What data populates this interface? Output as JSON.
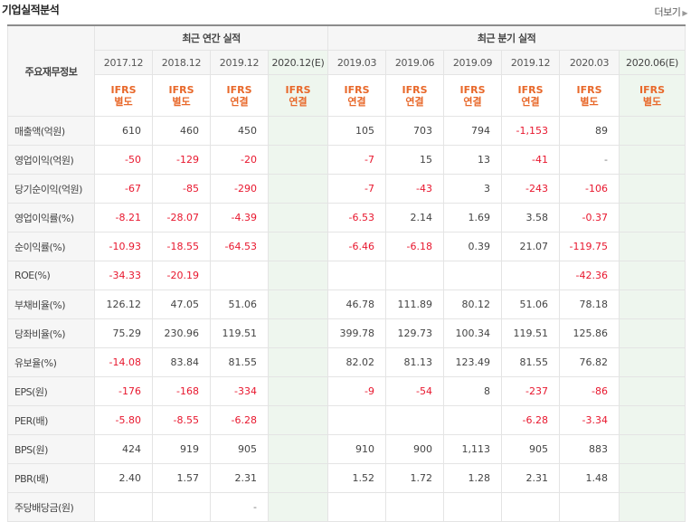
{
  "section_title": "기업실적분석",
  "more_link": "더보기",
  "header": {
    "row_label": "주요재무정보",
    "annual_group": "최근 연간 실적",
    "quarter_group": "최근 분기 실적",
    "periods": [
      "2017.12",
      "2018.12",
      "2019.12",
      "2020.12(E)",
      "2019.03",
      "2019.06",
      "2019.09",
      "2019.12",
      "2020.03",
      "2020.06(E)"
    ],
    "gaap": [
      [
        "IFRS",
        "별도"
      ],
      [
        "IFRS",
        "별도"
      ],
      [
        "IFRS",
        "연결"
      ],
      [
        "IFRS",
        "연결"
      ],
      [
        "IFRS",
        "연결"
      ],
      [
        "IFRS",
        "연결"
      ],
      [
        "IFRS",
        "연결"
      ],
      [
        "IFRS",
        "연결"
      ],
      [
        "IFRS",
        "별도"
      ],
      [
        "IFRS",
        "별도"
      ]
    ]
  },
  "rows": [
    {
      "label": "매출액(억원)",
      "values": [
        "610",
        "460",
        "450",
        "",
        "105",
        "703",
        "794",
        "-1,153",
        "89",
        ""
      ]
    },
    {
      "label": "영업이익(억원)",
      "values": [
        "-50",
        "-129",
        "-20",
        "",
        "-7",
        "15",
        "13",
        "-41",
        "-",
        ""
      ]
    },
    {
      "label": "당기순이익(억원)",
      "values": [
        "-67",
        "-85",
        "-290",
        "",
        "-7",
        "-43",
        "3",
        "-243",
        "-106",
        ""
      ]
    },
    {
      "label": "영업이익률(%)",
      "values": [
        "-8.21",
        "-28.07",
        "-4.39",
        "",
        "-6.53",
        "2.14",
        "1.69",
        "3.58",
        "-0.37",
        ""
      ]
    },
    {
      "label": "순이익률(%)",
      "values": [
        "-10.93",
        "-18.55",
        "-64.53",
        "",
        "-6.46",
        "-6.18",
        "0.39",
        "21.07",
        "-119.75",
        ""
      ]
    },
    {
      "label": "ROE(%)",
      "values": [
        "-34.33",
        "-20.19",
        "",
        "",
        "",
        "",
        "",
        "",
        "-42.36",
        ""
      ]
    },
    {
      "label": "부채비율(%)",
      "values": [
        "126.12",
        "47.05",
        "51.06",
        "",
        "46.78",
        "111.89",
        "80.12",
        "51.06",
        "78.18",
        ""
      ]
    },
    {
      "label": "당좌비율(%)",
      "values": [
        "75.29",
        "230.96",
        "119.51",
        "",
        "399.78",
        "129.73",
        "100.34",
        "119.51",
        "125.86",
        ""
      ]
    },
    {
      "label": "유보율(%)",
      "values": [
        "-14.08",
        "83.84",
        "81.55",
        "",
        "82.02",
        "81.13",
        "123.49",
        "81.55",
        "76.82",
        ""
      ]
    },
    {
      "label": "EPS(원)",
      "values": [
        "-176",
        "-168",
        "-334",
        "",
        "-9",
        "-54",
        "8",
        "-237",
        "-86",
        ""
      ]
    },
    {
      "label": "PER(배)",
      "values": [
        "-5.80",
        "-8.55",
        "-6.28",
        "",
        "",
        "",
        "",
        "-6.28",
        "-3.34",
        ""
      ]
    },
    {
      "label": "BPS(원)",
      "values": [
        "424",
        "919",
        "905",
        "",
        "910",
        "900",
        "1,113",
        "905",
        "883",
        ""
      ]
    },
    {
      "label": "PBR(배)",
      "values": [
        "2.40",
        "1.57",
        "2.31",
        "",
        "1.52",
        "1.72",
        "1.28",
        "2.31",
        "1.48",
        ""
      ]
    },
    {
      "label": "주당배당금(원)",
      "values": [
        "",
        "",
        "-",
        "",
        "",
        "",
        "",
        "",
        "",
        ""
      ]
    }
  ],
  "colors": {
    "negative": "#e8172e",
    "gaap": "#e8682a",
    "estimate_bg": "#eef6ee",
    "header_bg": "#f6f6f6"
  }
}
